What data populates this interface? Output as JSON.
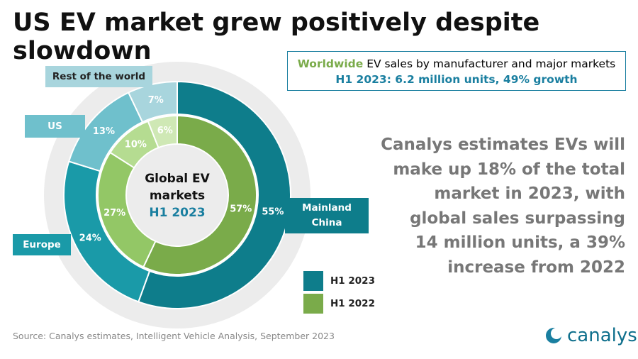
{
  "chart_data": {
    "type": "nested-donut",
    "title": "US EV market grew positively despite slowdown",
    "info_box": {
      "highlight": "Worldwide",
      "line1": "EV sales by manufacturer and major markets",
      "line2": "H1 2023: 6.2 million units, 49% growth"
    },
    "center_label": [
      "Global EV",
      "markets",
      "H1 2023"
    ],
    "categories": [
      "Mainland China",
      "Europe",
      "US",
      "Rest of the world"
    ],
    "category_colors": [
      "#0e7d8b",
      "#1a9aa8",
      "#6fc0cc",
      "#a8d5dd"
    ],
    "series": [
      {
        "name": "H1 2023",
        "color": "#0e7d8b",
        "colors": [
          "#0e7d8b",
          "#1a9aa8",
          "#6fc0cc",
          "#a8d5dd"
        ],
        "values": [
          55,
          24,
          13,
          7
        ],
        "value_labels": [
          "55%",
          "24%",
          "13%",
          "7%"
        ]
      },
      {
        "name": "H1 2022",
        "color": "#7aab4a",
        "colors": [
          "#7aab4a",
          "#93c766",
          "#b5dc91",
          "#cfe8b5"
        ],
        "values": [
          57,
          27,
          10,
          6
        ],
        "value_labels": [
          "57%",
          "27%",
          "10%",
          "6%"
        ]
      }
    ],
    "commentary": [
      "Canalys estimates EVs will",
      "make up 18% of the total",
      "market in 2023, with",
      "global sales surpassing",
      "14 million units, a 39%",
      "increase from 2022"
    ],
    "source": "Source:  Canalys estimates, Intelligent Vehicle Analysis, September 2023",
    "logo": "canalys"
  }
}
